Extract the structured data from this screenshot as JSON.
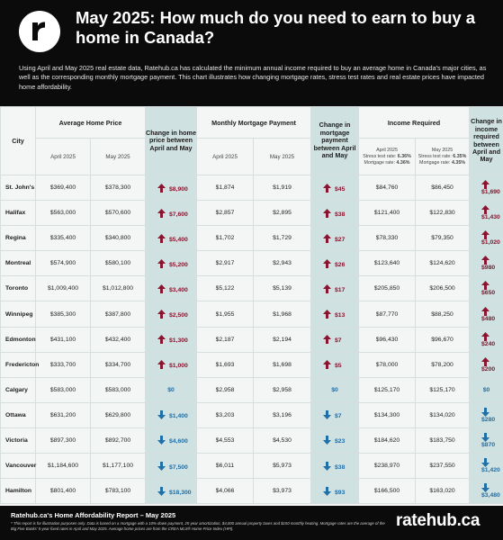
{
  "header": {
    "title": "May 2025: How much do you need to earn to buy a home in Canada?",
    "intro": "Using April and May 2025 real estate data, Ratehub.ca has calculated the minimum annual income required to buy an average home in Canada's major cities, as well as the corresponding monthly mortgage payment. This chart illustrates how changing mortgage rates, stress test rates and real estate prices have impacted home affordability."
  },
  "table": {
    "city_header": "City",
    "groups": {
      "avg_price": "Average Home Price",
      "price_change": "Change in home price between April and May",
      "mortgage": "Monthly Mortgage Payment",
      "mortgage_change": "Change in mortgage payment between April and May",
      "income": "Income Required",
      "income_change": "Change in income required between April and May"
    },
    "sub": {
      "april": "April 2025",
      "may": "May 2025",
      "income_april": "April 2025",
      "income_april_stress_label": "Stress test rate:",
      "income_april_stress": "6.36%",
      "income_april_mortgage_label": "Mortgage rate:",
      "income_april_mortgage": "4.36%",
      "income_may": "May 2025",
      "income_may_stress_label": "Stress test rate:",
      "income_may_stress": "6.35%",
      "income_may_mortgage_label": "Mortgage rate:",
      "income_may_mortgage": "4.35%"
    },
    "rows": [
      {
        "city": "St. John's",
        "price_apr": "$369,400",
        "price_may": "$378,300",
        "price_chg": "$8,900",
        "pay_apr": "$1,874",
        "pay_may": "$1,919",
        "pay_chg": "$45",
        "inc_apr": "$84,760",
        "inc_may": "$86,450",
        "inc_chg": "$1,690",
        "dir": "up"
      },
      {
        "city": "Halifax",
        "price_apr": "$563,000",
        "price_may": "$570,600",
        "price_chg": "$7,600",
        "pay_apr": "$2,857",
        "pay_may": "$2,895",
        "pay_chg": "$38",
        "inc_apr": "$121,400",
        "inc_may": "$122,830",
        "inc_chg": "$1,430",
        "dir": "up"
      },
      {
        "city": "Regina",
        "price_apr": "$335,400",
        "price_may": "$340,800",
        "price_chg": "$5,400",
        "pay_apr": "$1,702",
        "pay_may": "$1,729",
        "pay_chg": "$27",
        "inc_apr": "$78,330",
        "inc_may": "$79,350",
        "inc_chg": "$1,020",
        "dir": "up"
      },
      {
        "city": "Montreal",
        "price_apr": "$574,900",
        "price_may": "$580,100",
        "price_chg": "$5,200",
        "pay_apr": "$2,917",
        "pay_may": "$2,943",
        "pay_chg": "$26",
        "inc_apr": "$123,640",
        "inc_may": "$124,620",
        "inc_chg": "$980",
        "dir": "up"
      },
      {
        "city": "Toronto",
        "price_apr": "$1,009,400",
        "price_may": "$1,012,800",
        "price_chg": "$3,400",
        "pay_apr": "$5,122",
        "pay_may": "$5,139",
        "pay_chg": "$17",
        "inc_apr": "$205,850",
        "inc_may": "$206,500",
        "inc_chg": "$650",
        "dir": "up"
      },
      {
        "city": "Winnipeg",
        "price_apr": "$385,300",
        "price_may": "$387,800",
        "price_chg": "$2,500",
        "pay_apr": "$1,955",
        "pay_may": "$1,968",
        "pay_chg": "$13",
        "inc_apr": "$87,770",
        "inc_may": "$88,250",
        "inc_chg": "$480",
        "dir": "up"
      },
      {
        "city": "Edmonton",
        "price_apr": "$431,100",
        "price_may": "$432,400",
        "price_chg": "$1,300",
        "pay_apr": "$2,187",
        "pay_may": "$2,194",
        "pay_chg": "$7",
        "inc_apr": "$96,430",
        "inc_may": "$96,670",
        "inc_chg": "$240",
        "dir": "up"
      },
      {
        "city": "Fredericton",
        "price_apr": "$333,700",
        "price_may": "$334,700",
        "price_chg": "$1,000",
        "pay_apr": "$1,693",
        "pay_may": "$1,698",
        "pay_chg": "$5",
        "inc_apr": "$78,000",
        "inc_may": "$78,200",
        "inc_chg": "$200",
        "dir": "up"
      },
      {
        "city": "Calgary",
        "price_apr": "$583,000",
        "price_may": "$583,000",
        "price_chg": "$0",
        "pay_apr": "$2,958",
        "pay_may": "$2,958",
        "pay_chg": "$0",
        "inc_apr": "$125,170",
        "inc_may": "$125,170",
        "inc_chg": "$0",
        "dir": "zero"
      },
      {
        "city": "Ottawa",
        "price_apr": "$631,200",
        "price_may": "$629,800",
        "price_chg": "$1,400",
        "pay_apr": "$3,203",
        "pay_may": "$3,196",
        "pay_chg": "$7",
        "inc_apr": "$134,300",
        "inc_may": "$134,020",
        "inc_chg": "$280",
        "dir": "down"
      },
      {
        "city": "Victoria",
        "price_apr": "$897,300",
        "price_may": "$892,700",
        "price_chg": "$4,600",
        "pay_apr": "$4,553",
        "pay_may": "$4,530",
        "pay_chg": "$23",
        "inc_apr": "$184,620",
        "inc_may": "$183,750",
        "inc_chg": "$870",
        "dir": "down"
      },
      {
        "city": "Vancouver",
        "price_apr": "$1,184,600",
        "price_may": "$1,177,100",
        "price_chg": "$7,500",
        "pay_apr": "$6,011",
        "pay_may": "$5,973",
        "pay_chg": "$38",
        "inc_apr": "$238,970",
        "inc_may": "$237,550",
        "inc_chg": "$1,420",
        "dir": "down"
      },
      {
        "city": "Hamilton",
        "price_apr": "$801,400",
        "price_may": "$783,100",
        "price_chg": "$18,300",
        "pay_apr": "$4,066",
        "pay_may": "$3,973",
        "pay_chg": "$93",
        "inc_apr": "$166,500",
        "inc_may": "$163,020",
        "inc_chg": "$3,480",
        "dir": "down"
      }
    ]
  },
  "footer": {
    "title": "Ratehub.ca's Home Affordability Report – May 2025",
    "note": "* This report is for illustration purposes only. Data is based on a mortgage with a 10% down payment, 25-year amortization, $4,000 annual property taxes and $150 monthly heating. Mortgage rates are the average of the Big Five Banks' 5-year fixed rates in April and May 2025. Average home prices are from the CREA MLS® Home Price Index (HPI).",
    "brand": "ratehub.ca"
  },
  "colors": {
    "background": "#0b0b0b",
    "table_bg": "#f4f6f6",
    "change_col": "#cfe1e0",
    "increase": "#8a1530",
    "decrease": "#1f6fa8"
  },
  "icons": {
    "logo": "ratehub-r-logo",
    "increase": "arrow-up-icon",
    "decrease": "arrow-down-icon"
  }
}
